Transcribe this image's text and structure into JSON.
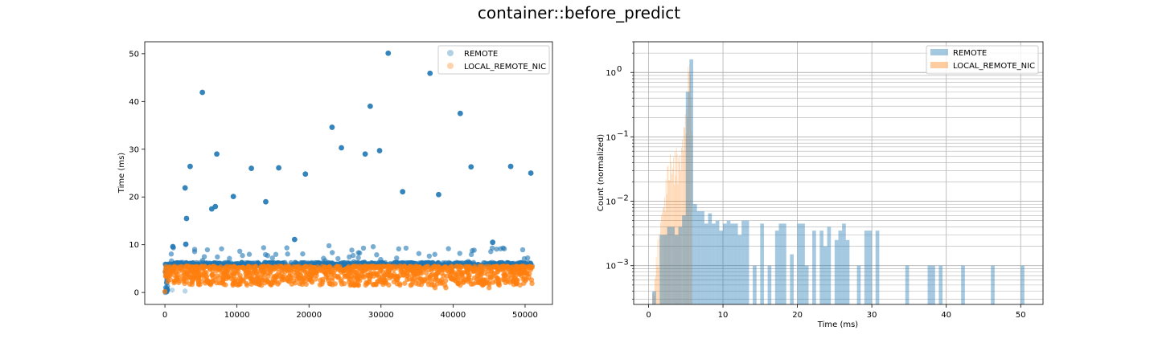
{
  "suptitle": "container::before_predict",
  "colors": {
    "remote": "#1f77b4",
    "local": "#ff7f0e",
    "grid": "#b0b0b0"
  },
  "chart_data": [
    {
      "type": "scatter",
      "title": "",
      "xlabel": "",
      "ylabel": "Time (ms)",
      "xlim": [
        -2800,
        53800
      ],
      "ylim": [
        -2.5,
        52.5
      ],
      "xticks": [
        0,
        10000,
        20000,
        30000,
        40000,
        50000
      ],
      "yticks": [
        0,
        10,
        20,
        30,
        40,
        50
      ],
      "legend": {
        "position": "top-right",
        "entries": [
          "REMOTE",
          "LOCAL_REMOTE_NIC"
        ]
      },
      "grid": false,
      "series": [
        {
          "name": "REMOTE",
          "band": {
            "x_range": [
              0,
              51000
            ],
            "y_range": [
              5.5,
              6.3
            ]
          },
          "x": [
            5200,
            31000,
            36800,
            41000,
            23200,
            28500,
            7200,
            3500,
            12000,
            14000,
            2800,
            15800,
            24500,
            27800,
            29800,
            19500,
            42500,
            48000,
            50800,
            33000,
            38000,
            3000,
            6500,
            9500,
            1100,
            2900,
            18000,
            45500,
            7000
          ],
          "y": [
            41.9,
            50.1,
            45.9,
            37.5,
            34.6,
            39.0,
            29.0,
            26.4,
            26.0,
            19.0,
            21.9,
            26.1,
            30.3,
            29.0,
            29.7,
            24.8,
            26.3,
            26.4,
            25.0,
            21.1,
            20.5,
            15.5,
            17.5,
            20.1,
            9.6,
            10.1,
            11.1,
            10.5,
            18.0
          ],
          "size": "small"
        },
        {
          "name": "LOCAL_REMOTE_NIC",
          "band": {
            "x_range": [
              0,
              51000
            ],
            "y_range": [
              1.5,
              5.5
            ]
          },
          "x": [
            0,
            37500,
            39000,
            45000
          ],
          "y": [
            0.2,
            1.0,
            1.0,
            1.0
          ]
        }
      ]
    },
    {
      "type": "histogram",
      "title": "",
      "xlabel": "Time (ms)",
      "ylabel": "Count (normalized)",
      "xscale": "linear",
      "yscale": "log",
      "xlim": [
        -2,
        53
      ],
      "ylim": [
        0.00025,
        3
      ],
      "xticks": [
        0,
        10,
        20,
        30,
        40,
        50
      ],
      "yticks": [
        "10^-3",
        "10^-2",
        "10^-1",
        "10^0"
      ],
      "grid": true,
      "legend": {
        "position": "top-right",
        "entries": [
          "REMOTE",
          "LOCAL_REMOTE_NIC"
        ]
      },
      "series": [
        {
          "name": "REMOTE",
          "bin_width": 0.5,
          "bins": [
            0.5,
            1.5,
            2.0,
            2.5,
            3.0,
            3.5,
            4.0,
            4.5,
            5.0,
            5.5,
            6.0,
            6.5,
            7.0,
            7.5,
            8.0,
            8.5,
            9.0,
            9.5,
            10.0,
            10.5,
            11.0,
            11.5,
            12.0,
            12.5,
            13.0,
            14.0,
            15.0,
            16.0,
            17.0,
            17.5,
            18.0,
            19.0,
            20.0,
            20.5,
            21.0,
            22.0,
            23.0,
            23.5,
            24.0,
            25.0,
            25.5,
            26.0,
            26.5,
            28.0,
            29.0,
            29.5,
            30.5,
            34.5,
            37.5,
            38.0,
            39.0,
            42.0,
            46.0,
            50.0
          ],
          "values": [
            0.0004,
            0.003,
            0.003,
            0.004,
            0.004,
            0.003,
            0.004,
            0.006,
            0.5,
            1.6,
            0.009,
            0.007,
            0.007,
            0.0045,
            0.0065,
            0.0045,
            0.005,
            0.0035,
            0.0045,
            0.005,
            0.0045,
            0.0045,
            0.003,
            0.005,
            0.005,
            0.001,
            0.0045,
            0.001,
            0.0035,
            0.0045,
            0.0045,
            0.0015,
            0.0045,
            0.0045,
            0.001,
            0.0035,
            0.0035,
            0.002,
            0.004,
            0.0025,
            0.0035,
            0.0045,
            0.0025,
            0.001,
            0.0035,
            0.0035,
            0.0035,
            0.001,
            0.001,
            0.001,
            0.001,
            0.001,
            0.001,
            0.001
          ]
        },
        {
          "name": "LOCAL_REMOTE_NIC",
          "bin_width": 0.1,
          "envelope_x": [
            0.5,
            1.0,
            1.5,
            2.0,
            2.3,
            2.6,
            3.0,
            3.3,
            3.6,
            4.0,
            4.3,
            4.6,
            4.9,
            5.2,
            5.4,
            5.6,
            5.8
          ],
          "envelope_y": [
            0.0004,
            0.0015,
            0.004,
            0.008,
            0.02,
            0.04,
            0.05,
            0.04,
            0.06,
            0.05,
            0.08,
            0.1,
            0.2,
            0.5,
            2.0,
            1.0,
            0.3
          ]
        }
      ]
    }
  ]
}
